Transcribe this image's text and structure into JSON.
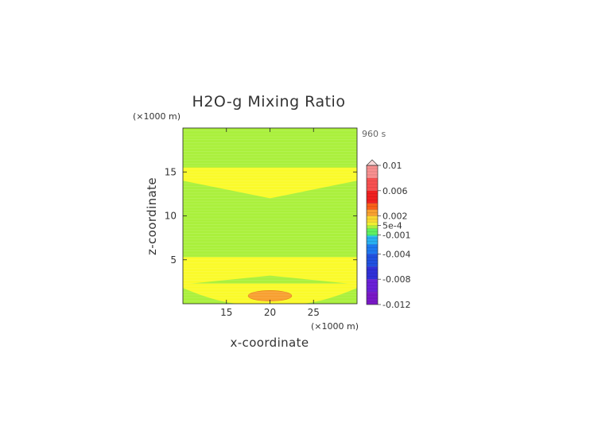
{
  "chart_data": {
    "type": "heatmap",
    "title": "H2O-g Mixing Ratio",
    "xlabel": "x-coordinate",
    "ylabel": "z-coordinate",
    "x_unit": "(×1000 m)",
    "y_unit": "(×1000 m)",
    "time_label": "960 s",
    "xlim": [
      10,
      30
    ],
    "ylim": [
      0,
      20
    ],
    "x_ticks": [
      15,
      20,
      25
    ],
    "y_ticks": [
      5,
      10,
      15
    ],
    "x_tick_labels": [
      "15",
      "20",
      "25"
    ],
    "y_tick_labels": [
      "5",
      "10",
      "15"
    ],
    "colorbar": {
      "range": [
        -0.012,
        0.01
      ],
      "tick_values": [
        0.01,
        0.006,
        0.002,
        0.0005,
        -0.001,
        -0.004,
        -0.008,
        -0.012
      ],
      "tick_labels": [
        "0.01",
        "0.006",
        "0.002",
        "5e-4",
        "-0.001",
        "-0.004",
        "-0.008",
        "-0.012"
      ],
      "extend_max": true
    },
    "regions": [
      {
        "value_range": [
          -0.001,
          0.0005
        ],
        "color": "#aaf03c",
        "description": "background"
      },
      {
        "value_range": [
          0.0005,
          0.001
        ],
        "color": "#fafa2a",
        "description": "upper band",
        "z_range_edges": [
          14,
          15.5
        ],
        "z_range_center": [
          12,
          15.5
        ]
      },
      {
        "value_range": [
          0.0005,
          0.001
        ],
        "color": "#fafa2a",
        "description": "lower band",
        "z_range_edges": [
          2.2,
          5.3
        ],
        "z_range_center": [
          3.2,
          5.3
        ]
      },
      {
        "value_range": [
          0.002,
          0.003
        ],
        "color": "#f8a030",
        "description": "surface maximum",
        "x_center": 20,
        "z_center": 0.9,
        "x_halfwidth": 2.5,
        "z_halfheight": 0.6
      }
    ]
  }
}
